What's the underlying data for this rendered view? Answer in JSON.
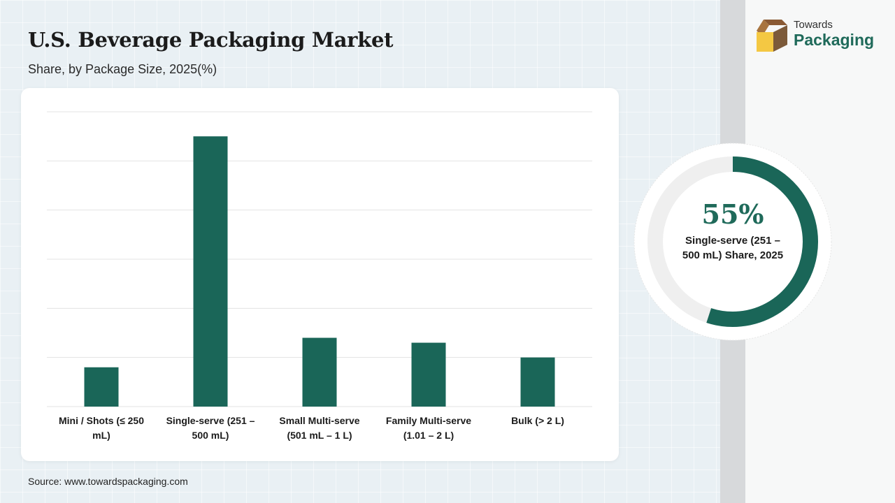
{
  "header": {
    "title": "U.S. Beverage Packaging Market",
    "subtitle": "Share, by Package Size, 2025(%)"
  },
  "source": "Source: www.towardspackaging.com",
  "logo": {
    "line1": "Towards",
    "line2": "Packaging"
  },
  "highlight": {
    "value": 55,
    "percent_text": "55%",
    "label": "Single-serve (251 – 500 mL) Share, 2025"
  },
  "colors": {
    "bar": "#1a6658",
    "donut_fill": "#1a6658",
    "donut_track": "#efefef",
    "accent_text": "#1f6a5a"
  },
  "chart_data": {
    "type": "bar",
    "categories": [
      [
        "Mini / Shots (≤ 250",
        "mL)"
      ],
      [
        "Single-serve (251 –",
        "500 mL)"
      ],
      [
        "Small Multi-serve",
        "(501 mL – 1 L)"
      ],
      [
        "Family Multi-serve",
        "(1.01 – 2 L)"
      ],
      [
        "Bulk (> 2 L)"
      ]
    ],
    "values": [
      8,
      55,
      14,
      13,
      10
    ],
    "ylim": [
      0,
      60
    ],
    "gridlines": [
      0,
      10,
      20,
      30,
      40,
      50,
      60
    ],
    "grid": true,
    "title": "",
    "xlabel": "",
    "ylabel": ""
  }
}
